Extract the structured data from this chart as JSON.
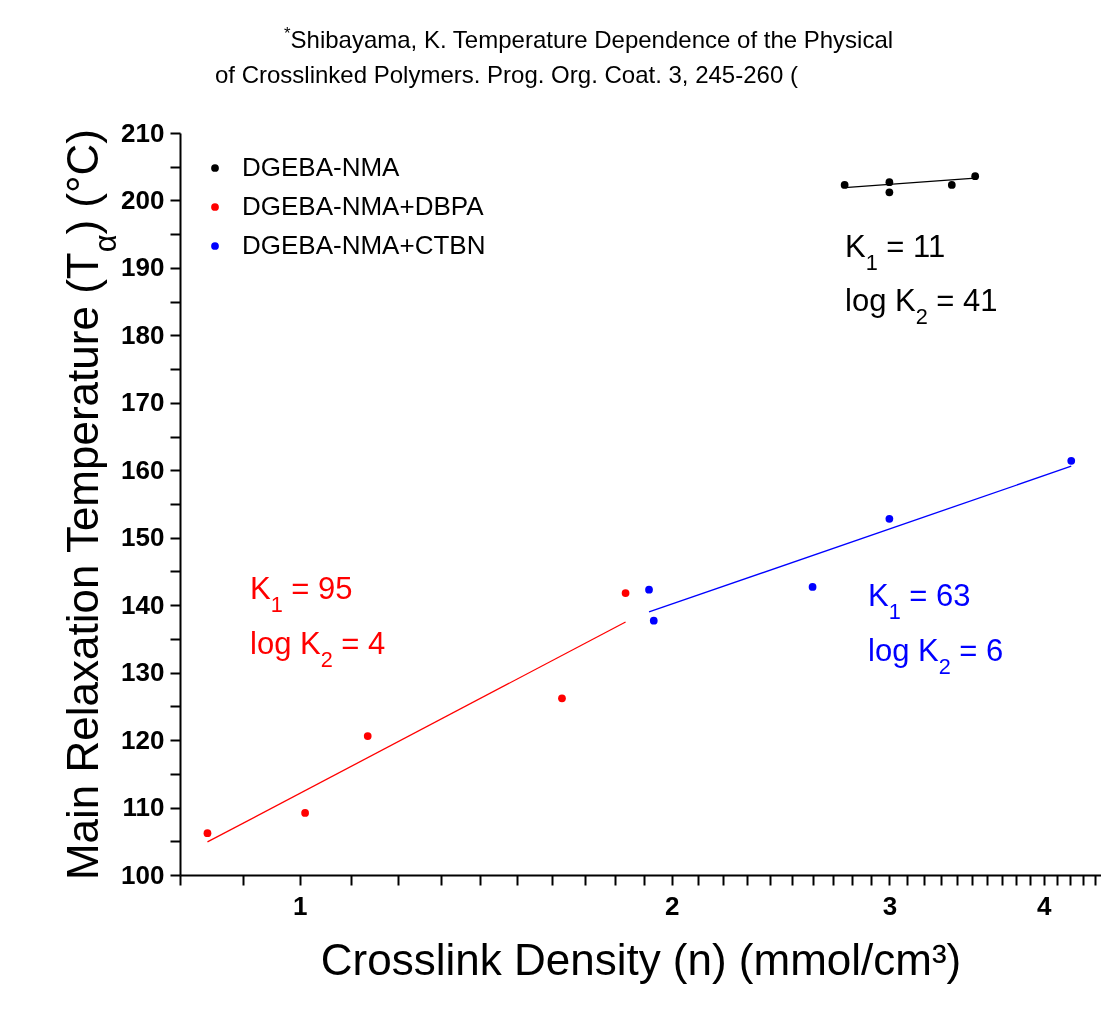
{
  "chart_data": {
    "type": "scatter",
    "xlabel": "Crosslink Density (n) (mmol/cm³)",
    "ylabel": "Main Relaxation Temperature (T$_{α}$) (°C)",
    "log": "x",
    "xlim": [
      0.8,
      4.45
    ],
    "ylim": [
      100,
      210
    ],
    "xticks": [
      {
        "value": 0.8,
        "label": null
      },
      {
        "value": 0.9,
        "label": null
      },
      1,
      {
        "value": 1.1,
        "label": null
      },
      {
        "value": 1.2,
        "label": null
      },
      {
        "value": 1.3,
        "label": null
      },
      {
        "value": 1.4,
        "label": null
      },
      {
        "value": 1.5,
        "label": null
      },
      {
        "value": 1.6,
        "label": null
      },
      {
        "value": 1.7,
        "label": null
      },
      {
        "value": 1.8,
        "label": null
      },
      {
        "value": 1.9,
        "label": null
      },
      2,
      {
        "value": 2.1,
        "label": null
      },
      {
        "value": 2.2,
        "label": null
      },
      {
        "value": 2.3,
        "label": null
      },
      {
        "value": 2.4,
        "label": null
      },
      {
        "value": 2.5,
        "label": null
      },
      {
        "value": 2.6,
        "label": null
      },
      {
        "value": 2.7,
        "label": null
      },
      {
        "value": 2.8,
        "label": null
      },
      {
        "value": 2.9,
        "label": null
      },
      3,
      {
        "value": 3.1,
        "label": null
      },
      {
        "value": 3.2,
        "label": null
      },
      {
        "value": 3.3,
        "label": null
      },
      {
        "value": 3.4,
        "label": null
      },
      {
        "value": 3.5,
        "label": null
      },
      {
        "value": 3.6,
        "label": null
      },
      {
        "value": 3.7,
        "label": null
      },
      {
        "value": 3.8,
        "label": null
      },
      {
        "value": 3.9,
        "label": null
      },
      4,
      {
        "value": 4.1,
        "label": null
      },
      {
        "value": 4.2,
        "label": null
      },
      {
        "value": 4.3,
        "label": null
      },
      {
        "value": 4.4,
        "label": null
      }
    ],
    "yticks": [
      100,
      {
        "value": 105,
        "label": null
      },
      110,
      {
        "value": 115,
        "label": null
      },
      120,
      {
        "value": 125,
        "label": null
      },
      130,
      {
        "value": 135,
        "label": null
      },
      140,
      {
        "value": 145,
        "label": null
      },
      150,
      {
        "value": 155,
        "label": null
      },
      160,
      {
        "value": 165,
        "label": null
      },
      170,
      {
        "value": 175,
        "label": null
      },
      180,
      {
        "value": 185,
        "label": null
      },
      190,
      {
        "value": 195,
        "label": null
      },
      200,
      {
        "value": 205,
        "label": null
      },
      210
    ],
    "grid": false,
    "legend": "top left",
    "marker": "circle",
    "series": [
      {
        "name": "DGEBA-NMA",
        "type": "scatter",
        "color": "#000000",
        "x": [
          2.76,
          3.0,
          3.0,
          3.37,
          3.52
        ],
        "values": [
          202.3,
          202.7,
          201.2,
          202.3,
          203.6
        ]
      },
      {
        "name": "DGEBA-NMA+DBPA",
        "type": "scatter",
        "color": "#ff0000",
        "x": [
          0.842,
          1.01,
          1.135,
          1.63,
          1.835
        ],
        "values": [
          106.2,
          109.2,
          120.6,
          126.2,
          141.8
        ]
      },
      {
        "name": "DGEBA-NMA+CTBN",
        "type": "scatter",
        "color": "#0000ff",
        "x": [
          1.917,
          1.934,
          2.6,
          3.0,
          4.21
        ],
        "values": [
          142.3,
          137.7,
          142.7,
          152.8,
          161.4
        ]
      },
      {
        "type": "line",
        "marker": "none",
        "color": "#000000",
        "x": [
          2.76,
          3.52
        ],
        "values": [
          201.9,
          203.3
        ]
      },
      {
        "type": "line",
        "marker": "none",
        "color": "#ff0000",
        "x": [
          0.842,
          1.835
        ],
        "values": [
          104.9,
          137.5
        ]
      },
      {
        "type": "line",
        "marker": "none",
        "color": "#0000ff",
        "x": [
          1.917,
          4.21
        ],
        "values": [
          139.0,
          160.6
        ]
      }
    ],
    "annotations": [
      "K$_{1}$ = 11",
      "log K$_{2}$ = 41",
      "K$_{1}$ = 95",
      "log K$_{2}$ = 4",
      "K$_{1}$ = 63",
      "log K$_{2}$ = 6",
      "$^{*}$Shibayama, K. Temperature Dependence of the Physical",
      "of Crosslinked Polymers. Prog. Org. Coat. 3, 245-260 ("
    ]
  }
}
